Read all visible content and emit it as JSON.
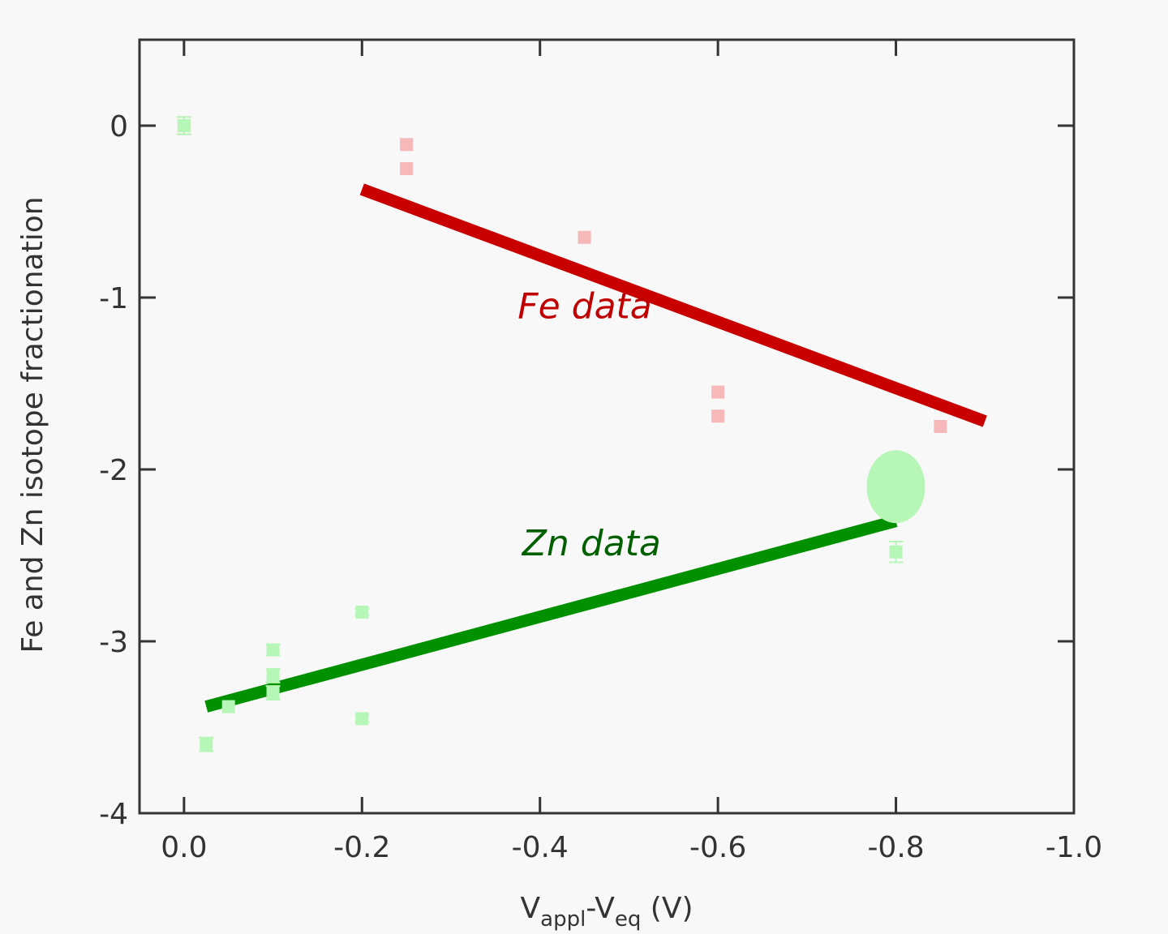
{
  "chart_data": {
    "type": "scatter",
    "title": "",
    "xlabel": {
      "main1": "V",
      "sub1": "appl",
      "mid": "-V",
      "sub2": "eq",
      "tail": " (V)"
    },
    "ylabel": "Fe and Zn isotope fractionation",
    "xlim": [
      0.05,
      -1.0
    ],
    "ylim": [
      -4,
      0.5
    ],
    "x_ticks": [
      0.0,
      -0.2,
      -0.4,
      -0.6,
      -0.8,
      -1.0
    ],
    "x_tick_labels": [
      "0.0",
      "-0.2",
      "-0.4",
      "-0.6",
      "-0.8",
      "-1.0"
    ],
    "y_ticks": [
      0,
      -1,
      -2,
      -3,
      -4
    ],
    "y_tick_labels": [
      "0",
      "-1",
      "-2",
      "-3",
      "-4"
    ],
    "grid": false,
    "legend": "none",
    "series": [
      {
        "name": "Fe data",
        "color": "#f6b8b8",
        "marker": "square",
        "points": [
          {
            "x": 0.0,
            "y": 0.0,
            "err": 0.05
          },
          {
            "x": -0.25,
            "y": -0.11
          },
          {
            "x": -0.25,
            "y": -0.25
          },
          {
            "x": -0.45,
            "y": -0.65
          },
          {
            "x": -0.6,
            "y": -1.55
          },
          {
            "x": -0.6,
            "y": -1.69
          },
          {
            "x": -0.85,
            "y": -1.75
          }
        ],
        "trend": {
          "color": "#c80000",
          "x": [
            -0.2,
            -0.9
          ],
          "y": [
            -0.37,
            -1.72
          ]
        }
      },
      {
        "name": "Zn data",
        "color": "#b6f6b6",
        "marker": "square",
        "points": [
          {
            "x": 0.0,
            "y": 0.0,
            "err": 0.05
          },
          {
            "x": -0.025,
            "y": -3.6,
            "err": 0.04
          },
          {
            "x": -0.05,
            "y": -3.38
          },
          {
            "x": -0.1,
            "y": -3.05,
            "err": 0.03
          },
          {
            "x": -0.1,
            "y": -3.2,
            "err": 0.04
          },
          {
            "x": -0.1,
            "y": -3.3,
            "err": 0.04
          },
          {
            "x": -0.2,
            "y": -2.83,
            "err": 0.02
          },
          {
            "x": -0.2,
            "y": -3.45,
            "err": 0.02
          },
          {
            "x": -0.8,
            "y": -2.48,
            "err": 0.06
          }
        ],
        "highlight": {
          "x": -0.8,
          "y": -2.1
        },
        "trend": {
          "color": "#009000",
          "x": [
            -0.025,
            -0.8
          ],
          "y": [
            -3.38,
            -2.3
          ]
        }
      }
    ],
    "annotations": [
      {
        "text": "Fe data",
        "color": "#c00000",
        "x": -0.375,
        "y": -1.12
      },
      {
        "text": "Zn data",
        "color": "#006000",
        "x": -0.38,
        "y": -2.5
      }
    ]
  }
}
